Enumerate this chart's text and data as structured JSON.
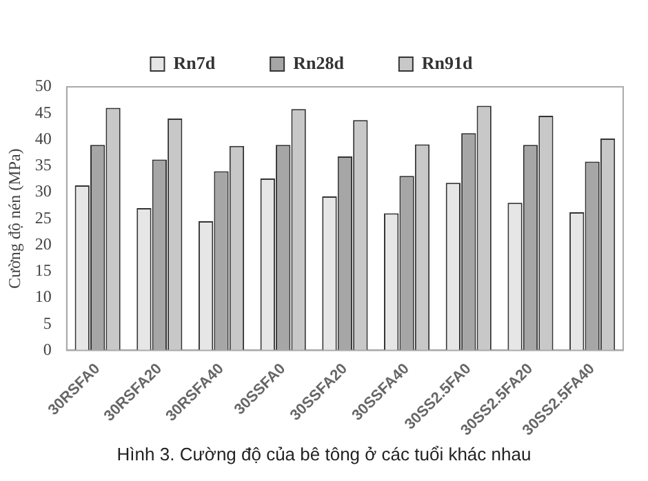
{
  "chart_data": {
    "type": "bar",
    "ylabel": "Cường độ nén (MPa)",
    "categories": [
      "30RSFA0",
      "30RSFA20",
      "30RSFA40",
      "30SSFA0",
      "30SSFA20",
      "30SSFA40",
      "30SS2.5FA0",
      "30SS2.5FA20",
      "30SS2.5FA40"
    ],
    "series": [
      {
        "name": "Rn7d",
        "color": "#e6e6e6",
        "values": [
          31.3,
          27,
          24.5,
          32.6,
          29.2,
          26,
          31.8,
          28,
          26.2
        ]
      },
      {
        "name": "Rn28d",
        "color": "#a6a6a6",
        "values": [
          39,
          36.2,
          34,
          39,
          36.8,
          33.1,
          41.2,
          39,
          35.8
        ]
      },
      {
        "name": "Rn91d",
        "color": "#c8c8c8",
        "values": [
          46,
          44,
          38.8,
          45.8,
          43.7,
          39.1,
          46.4,
          44.5,
          40.2
        ]
      }
    ],
    "ylim": [
      0,
      50
    ],
    "yticks": [
      0,
      5,
      10,
      15,
      20,
      25,
      30,
      35,
      40,
      45,
      50
    ],
    "grid": false,
    "legend": "top",
    "annotations": [
      "Hình 3. Cường độ của bê tông ở các tuổi khác nhau"
    ]
  }
}
